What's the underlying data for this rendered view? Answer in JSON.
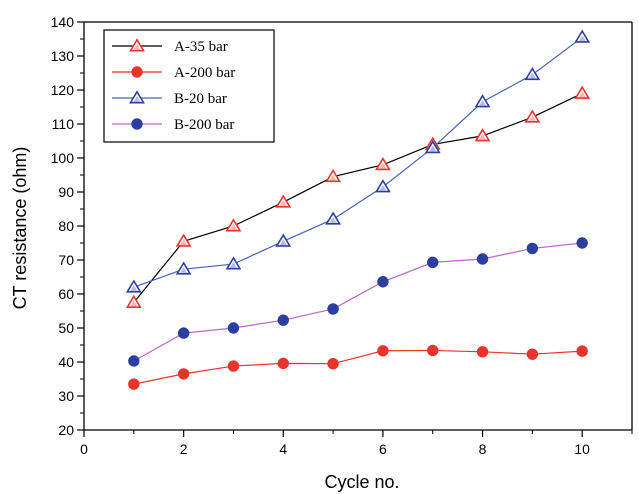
{
  "chart_data": {
    "type": "line",
    "xlabel": "Cycle no.",
    "ylabel": "CT resistance (ohm)",
    "xlim": [
      0,
      11
    ],
    "ylim": [
      20,
      140
    ],
    "xticks": [
      0,
      2,
      4,
      6,
      8,
      10
    ],
    "yticks": [
      20,
      30,
      40,
      50,
      60,
      70,
      80,
      90,
      100,
      110,
      120,
      130,
      140
    ],
    "grid": false,
    "legend_position": "top-left",
    "x": [
      1,
      2,
      3,
      4,
      5,
      6,
      7,
      8,
      9,
      10
    ],
    "series": [
      {
        "name": "A-35 bar",
        "marker": "triangle-open",
        "line_color": "#000000",
        "marker_color": "#e8342a",
        "values": [
          57.5,
          75.5,
          80,
          87,
          94.5,
          98,
          104,
          106.5,
          112,
          119
        ]
      },
      {
        "name": "A-200 bar",
        "marker": "circle-filled",
        "line_color": "#e8342a",
        "marker_color": "#e8342a",
        "values": [
          33.5,
          36.5,
          38.8,
          39.6,
          39.5,
          43.3,
          43.4,
          43,
          42.3,
          43.2
        ]
      },
      {
        "name": "B-20 bar",
        "marker": "triangle-open",
        "line_color": "#4a62b4",
        "marker_color": "#2c3fa0",
        "values": [
          62,
          67.3,
          68.8,
          75.5,
          82,
          91.5,
          103,
          116.5,
          124.5,
          135.5
        ]
      },
      {
        "name": "B-200 bar",
        "marker": "circle-filled",
        "line_color": "#b86ac4",
        "marker_color": "#2c3fa0",
        "values": [
          40.3,
          48.5,
          50,
          52.3,
          55.6,
          63.6,
          69.3,
          70.3,
          73.4,
          75
        ]
      }
    ]
  }
}
